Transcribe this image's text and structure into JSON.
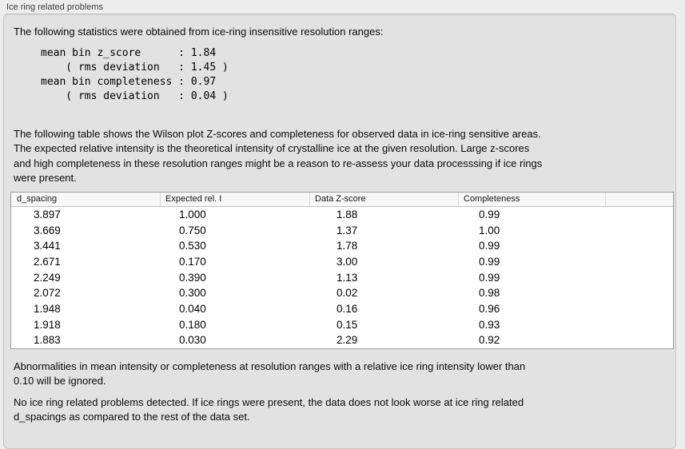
{
  "window": {
    "title": "Ice ring related problems"
  },
  "panel": {
    "intro": "The following statistics were obtained from ice-ring insensitive resolution ranges:",
    "stats_block": "mean bin z_score      : 1.84\n    ( rms deviation   : 1.45 )\nmean bin completeness : 0.97\n    ( rms deviation   : 0.04 )",
    "description": "The following table shows the Wilson plot Z-scores and completeness for observed data in ice-ring sensitive areas.\nThe expected relative intensity is the theoretical intensity of crystalline ice at the given resolution. Large z-scores\nand high completeness in these resolution ranges might be a reason to re-assess your data processsing if ice rings\nwere present.",
    "table": {
      "headers": [
        "d_spacing",
        "Expected rel. I",
        "Data Z-score",
        "Completeness",
        ""
      ],
      "rows": [
        [
          "3.897",
          "1.000",
          "1.88",
          "0.99"
        ],
        [
          "3.669",
          "0.750",
          "1.37",
          "1.00"
        ],
        [
          "3.441",
          "0.530",
          "1.78",
          "0.99"
        ],
        [
          "2.671",
          "0.170",
          "3.00",
          "0.99"
        ],
        [
          "2.249",
          "0.390",
          "1.13",
          "0.99"
        ],
        [
          "2.072",
          "0.300",
          "0.02",
          "0.98"
        ],
        [
          "1.948",
          "0.040",
          "0.16",
          "0.96"
        ],
        [
          "1.918",
          "0.180",
          "0.15",
          "0.93"
        ],
        [
          "1.883",
          "0.030",
          "2.29",
          "0.92"
        ]
      ]
    },
    "note_ignore": "Abnormalities in mean intensity or completeness at resolution ranges with a relative ice ring intensity lower than\n0.10 will be ignored.",
    "conclusion": "No ice ring related problems detected. If ice rings were present, the data does not look worse at ice ring related\nd_spacings as compared to the rest of the data set."
  },
  "colors": {
    "page_background": "#ededed",
    "panel_background": "#e2e2e2",
    "panel_border": "#c6c6c6",
    "table_border": "#9e9e9e",
    "table_header_background": "#f7f7f7",
    "text": "#0a0a0a"
  }
}
